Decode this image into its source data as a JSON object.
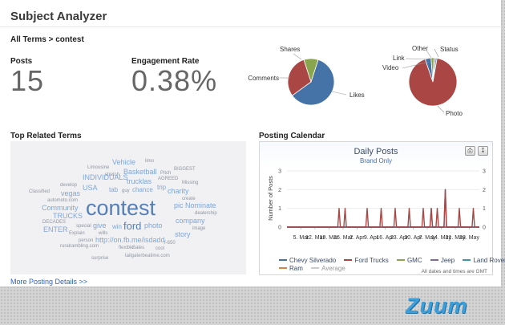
{
  "app": {
    "title": "Subject Analyzer"
  },
  "breadcrumb": {
    "root": "All Terms",
    "sep": ">",
    "current": "contest"
  },
  "stats": {
    "posts": {
      "label": "Posts",
      "value": "15"
    },
    "engagement": {
      "label": "Engagement Rate",
      "value": "0.38%"
    }
  },
  "engagement_pie": {
    "labels": {
      "shares": "Shares",
      "comments": "Comments",
      "likes": "Likes"
    },
    "slices": [
      {
        "key": "likes",
        "fraction": 0.6,
        "color": "#4572a7"
      },
      {
        "key": "comments",
        "fraction": 0.3,
        "color": "#aa4643"
      },
      {
        "key": "shares",
        "fraction": 0.1,
        "color": "#89a54e"
      }
    ]
  },
  "media_pie": {
    "labels": {
      "other": "Other",
      "status": "Status",
      "link": "Link",
      "video": "Video",
      "photo": "Photo"
    },
    "slices": [
      {
        "key": "photo",
        "fraction": 0.92,
        "color": "#aa4643"
      },
      {
        "key": "video",
        "fraction": 0.04,
        "color": "#4572a7"
      },
      {
        "key": "link",
        "fraction": 0.02,
        "color": "#89a54e"
      },
      {
        "key": "other",
        "fraction": 0.01,
        "color": "#80699b"
      },
      {
        "key": "status",
        "fraction": 0.01,
        "color": "#3d96ae"
      }
    ]
  },
  "related_terms": {
    "heading": "Top Related Terms",
    "main_term": "contest",
    "words": [
      "Vehicle",
      "limo",
      "Limousine",
      "stretch",
      "Basketball",
      "Pitch",
      "BIGGEST",
      "INDIVIDUALS",
      "trucklas",
      "AGREED",
      "Missing",
      "develop",
      "USA",
      "tab",
      "guy",
      "chance",
      "trip",
      "charity",
      "Classified",
      "vegas",
      "create",
      "automoto.com",
      "pic",
      "Nominate",
      "Community",
      "dealership",
      "TRUCKS",
      "company",
      "DECADES",
      "special",
      "give",
      "win",
      "ford",
      "photo",
      "image",
      "ENTER",
      "wills",
      "Explain",
      "story",
      "f-650",
      "person",
      "http://on.fb.me/isdadd",
      "Sales",
      "flexible",
      "cool",
      "ruralrambling.com",
      "surprise",
      "tailgaterbeatime.com"
    ]
  },
  "more_link": "More Posting Details >>",
  "calendar": {
    "heading": "Posting Calendar",
    "title": "Daily Posts",
    "subtitle": "Brand Only",
    "y_label": "Number of Posts",
    "x_ticks": [
      "5. Mar",
      "12. Mar",
      "19. Mar",
      "26. Mar",
      "2. Apr",
      "9. Apr",
      "16. Apr",
      "23. Apr",
      "30. Apr",
      "7. May",
      "14. May",
      "21. May",
      "28. May"
    ],
    "export_icons": [
      "print-icon",
      "export-icon"
    ],
    "legend": [
      "Chevy Silverado",
      "Ford Trucks",
      "GMC",
      "Jeep",
      "Land Rover",
      "Ram",
      "Average"
    ],
    "note": "All dates and times are GMT",
    "colors": {
      "chevy": "#4572a7",
      "ford": "#aa4643",
      "gmc": "#89a54e",
      "jeep": "#80699b",
      "landrover": "#3d96ae",
      "ram": "#db843d",
      "average": "#cccccc"
    }
  },
  "chart_data": {
    "type": "line",
    "title": "Daily Posts",
    "subtitle": "Brand Only",
    "ylabel": "Number of Posts",
    "ylim": [
      0,
      3
    ],
    "x": [
      "5. Mar",
      "12. Mar",
      "19. Mar",
      "26. Mar",
      "2. Apr",
      "9. Apr",
      "16. Apr",
      "23. Apr",
      "30. Apr",
      "7. May",
      "14. May",
      "21. May",
      "28. May"
    ],
    "series": [
      {
        "name": "Ford Trucks",
        "color": "#aa4643",
        "spikes": [
          {
            "date": "24. Mar",
            "value": 1
          },
          {
            "date": "27. Mar",
            "value": 1
          },
          {
            "date": "7. Apr",
            "value": 1
          },
          {
            "date": "14. Apr",
            "value": 1
          },
          {
            "date": "21. Apr",
            "value": 1
          },
          {
            "date": "28. Apr",
            "value": 1
          },
          {
            "date": "5. May",
            "value": 1
          },
          {
            "date": "9. May",
            "value": 1
          },
          {
            "date": "12. May",
            "value": 1
          },
          {
            "date": "16. May",
            "value": 2
          },
          {
            "date": "23. May",
            "value": 1
          },
          {
            "date": "30. May",
            "value": 1
          }
        ]
      },
      {
        "name": "Chevy Silverado",
        "color": "#4572a7",
        "spikes": [
          {
            "date": "16. May",
            "value": 2
          }
        ]
      },
      {
        "name": "Jeep",
        "color": "#80699b",
        "spikes": [
          {
            "date": "9. May",
            "value": 1
          }
        ]
      },
      {
        "name": "Ram",
        "color": "#db843d",
        "spikes": []
      },
      {
        "name": "GMC",
        "color": "#89a54e",
        "spikes": []
      },
      {
        "name": "Land Rover",
        "color": "#3d96ae",
        "spikes": []
      },
      {
        "name": "Average",
        "color": "#cccccc",
        "spikes": []
      }
    ]
  },
  "footer": {
    "logo": "Zuum"
  }
}
